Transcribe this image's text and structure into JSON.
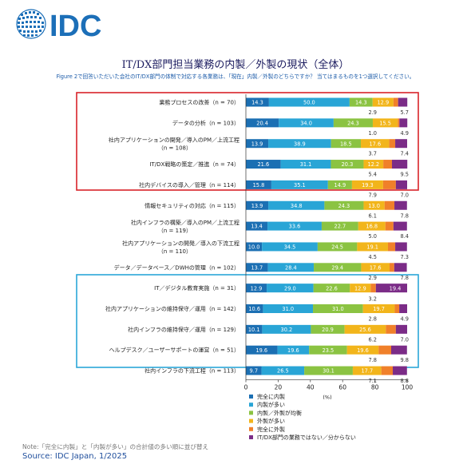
{
  "logo": {
    "text": "IDC"
  },
  "title": "IT/DX部門担当業務の内製／外製の現状（全体）",
  "subtitle": "Figure 2で回答いただいた会社のIT/DX部門の体制で対応する各業務は、「現在」内製／外製のどちらですか？ 当てはまるものを1つ選択してください。",
  "note": "Note:「完全に内製」と「内製が多い」の合計値の多い順に並び替え",
  "source": "Source: IDC Japan, 1/2025",
  "colors": {
    "red_box": "#d8232a",
    "blue_box": "#2ba6d9"
  },
  "chart_data": {
    "type": "bar",
    "orientation": "horizontal",
    "stacked": true,
    "xlabel": "(%)",
    "xlim": [
      0,
      100
    ],
    "xticks": [
      "0",
      "20",
      "40",
      "60",
      "80",
      "100"
    ],
    "categories": [
      "業務プロセスの改善（n = 70）",
      "データの分析（n = 103）",
      "社内アプリケーションの開発／導入のPM／上流工程（n = 108）",
      "IT/DX戦略の策定／推進（n = 74）",
      "社内デバイスの導入／管理（n = 114）",
      "情報セキュリティの対応（n = 115）",
      "社内インフラの構築／導入のPM／上流工程（n = 119）",
      "社内アプリケーションの開発／導入の下流工程（n = 110）",
      "データ／データベース／DWHの管理（n = 102）",
      "IT／デジタル教育実施（n = 31）",
      "社内アプリケーションの維持保守／運用（n = 142）",
      "社内インフラの維持保守／運用（n = 129）",
      "ヘルプデスク／ユーザーサポートの運営（n = 51）",
      "社内インフラの下流工程（n = 113）"
    ],
    "series": [
      {
        "name": "完全に内製",
        "color": "#1b6fb3",
        "values": [
          14.3,
          20.4,
          13.9,
          21.6,
          15.8,
          13.9,
          13.4,
          10.0,
          13.7,
          12.9,
          10.6,
          10.1,
          19.6,
          9.7
        ]
      },
      {
        "name": "内製が多い",
        "color": "#29a5d6",
        "values": [
          50.0,
          34.0,
          38.9,
          31.1,
          35.1,
          34.8,
          33.6,
          34.5,
          28.4,
          29.0,
          31.0,
          30.2,
          19.6,
          26.5
        ]
      },
      {
        "name": "内製／外製が均衡",
        "color": "#8bc342",
        "values": [
          14.3,
          24.3,
          18.5,
          20.3,
          14.9,
          24.3,
          22.7,
          24.5,
          29.4,
          22.6,
          31.0,
          20.9,
          23.5,
          30.1
        ]
      },
      {
        "name": "外製が多い",
        "color": "#f2b51b",
        "values": [
          12.9,
          15.5,
          17.6,
          12.2,
          19.3,
          13.0,
          16.8,
          19.1,
          17.6,
          12.9,
          19.7,
          25.6,
          19.6,
          17.7
        ]
      },
      {
        "name": "完全に外製",
        "color": "#f0802a",
        "values": [
          2.9,
          1.0,
          3.7,
          5.4,
          7.9,
          6.1,
          5.0,
          4.5,
          2.9,
          3.2,
          2.8,
          6.2,
          7.8,
          7.1
        ]
      },
      {
        "name": "IT/DX部門の業務ではない／分からない",
        "color": "#7b2c87",
        "values": [
          5.7,
          4.9,
          7.4,
          9.5,
          7.0,
          7.8,
          8.4,
          7.3,
          7.8,
          19.4,
          4.9,
          7.0,
          9.8,
          8.8
        ]
      }
    ]
  }
}
